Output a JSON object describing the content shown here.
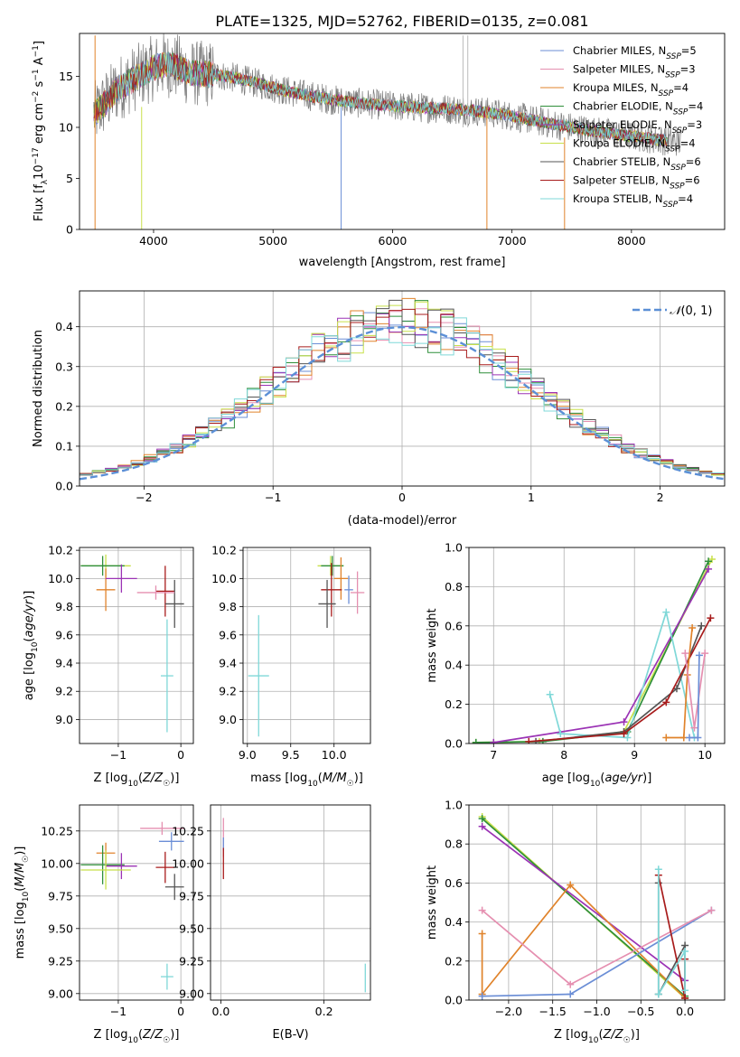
{
  "figure": {
    "suptitle": "PLATE=1325, MJD=52762, FIBERID=0135, z=0.081"
  },
  "colors": {
    "Chabrier MILES": "#6b8ed6",
    "Salpeter MILES": "#e58fb0",
    "Kroupa MILES": "#e0832b",
    "Chabrier ELODIE": "#2f8f3a",
    "Salpeter ELODIE": "#9b33b5",
    "Kroupa ELODIE": "#c8e04a",
    "Chabrier STELIB": "#555555",
    "Salpeter STELIB": "#a81c1c",
    "Kroupa STELIB": "#7fd8d8",
    "data": "#7a7a7a",
    "normal": "#5b8fd6"
  },
  "chart_data": [
    {
      "id": "spectrum",
      "type": "line",
      "title": "",
      "xlabel": "wavelength [Angstrom, rest frame]",
      "ylabel": "Flux [f_λ10^-17 erg cm^-2 s^-1 A^-1]",
      "xlim": [
        3380,
        8780
      ],
      "ylim": [
        0,
        19.2
      ],
      "xticks": [
        4000,
        5000,
        6000,
        7000,
        8000
      ],
      "yticks": [
        0,
        5,
        10,
        15
      ],
      "grid": false,
      "legend_position": "top-right",
      "legend": [
        {
          "label": "Chabrier MILES, N_SSP=5",
          "nssp": "5"
        },
        {
          "label": "Salpeter MILES, N_SSP=3",
          "nssp": "3"
        },
        {
          "label": "Kroupa MILES, N_SSP=4",
          "nssp": "4"
        },
        {
          "label": "Chabrier ELODIE, N_SSP=4",
          "nssp": "4"
        },
        {
          "label": "Salpeter ELODIE, N_SSP=3",
          "nssp": "3"
        },
        {
          "label": "Kroupa ELODIE, N_SSP=4",
          "nssp": "4"
        },
        {
          "label": "Chabrier STELIB, N_SSP=6",
          "nssp": "6"
        },
        {
          "label": "Salpeter STELIB, N_SSP=6",
          "nssp": "6"
        },
        {
          "label": "Kroupa STELIB, N_SSP=4",
          "nssp": "4"
        }
      ],
      "continuum": {
        "x": [
          3500,
          3600,
          3700,
          3800,
          3900,
          4000,
          4100,
          4200,
          4300,
          4500,
          4700,
          4900,
          5100,
          5300,
          5500,
          5700,
          5900,
          6100,
          6300,
          6500,
          6700,
          6900,
          7100,
          7300,
          7500,
          7700,
          7900,
          8100,
          8300,
          8400
        ],
        "y": [
          11.2,
          12.5,
          13.8,
          14.5,
          15.2,
          15.8,
          16.2,
          15.9,
          15.3,
          15.2,
          14.8,
          14.2,
          13.6,
          13.1,
          12.7,
          12.4,
          12.2,
          12.0,
          11.9,
          11.8,
          11.6,
          11.3,
          10.9,
          10.4,
          10.0,
          9.6,
          9.3,
          9.0,
          8.7,
          8.6
        ]
      }
    },
    {
      "id": "residuals",
      "type": "line",
      "xlabel": "(data-model)/error",
      "ylabel": "Normed distribution",
      "xlim": [
        -2.5,
        2.5
      ],
      "ylim": [
        0,
        0.49
      ],
      "xticks": [
        -2,
        -1,
        0,
        1,
        2
      ],
      "yticks": [
        0.0,
        0.1,
        0.2,
        0.3,
        0.4
      ],
      "grid": true,
      "legend_position": "top-right",
      "legend": [
        {
          "label": "N(0,1)"
        }
      ],
      "gaussian": {
        "mu": 0,
        "sigma": 1
      }
    },
    {
      "id": "age_vs_Z",
      "type": "scatter",
      "xlabel": "Z [log10(Z/Z☉)]",
      "ylabel": "age  [log10(age/yr)]",
      "xlim": [
        -1.62,
        0.2
      ],
      "ylim": [
        8.83,
        10.22
      ],
      "xticks": [
        -1,
        0
      ],
      "yticks": [
        9.0,
        9.2,
        9.4,
        9.6,
        9.8,
        10.0,
        10.2
      ],
      "grid": true,
      "points": [
        {
          "model": "Kroupa ELODIE",
          "x": -1.2,
          "y": 10.09,
          "xerr": 0.4,
          "yerr": 0.08
        },
        {
          "model": "Chabrier ELODIE",
          "x": -1.25,
          "y": 10.09,
          "xerr": 0.35,
          "yerr": 0.07
        },
        {
          "model": "Kroupa MILES",
          "x": -1.2,
          "y": 9.92,
          "xerr": 0.15,
          "yerr": 0.15
        },
        {
          "model": "Salpeter ELODIE",
          "x": -0.95,
          "y": 10.0,
          "xerr": 0.25,
          "yerr": 0.1
        },
        {
          "model": "Salpeter STELIB",
          "x": -0.25,
          "y": 9.91,
          "xerr": 0.15,
          "yerr": 0.18
        },
        {
          "model": "Chabrier STELIB",
          "x": -0.1,
          "y": 9.82,
          "xerr": 0.15,
          "yerr": 0.17
        },
        {
          "model": "Salpeter MILES",
          "x": -0.4,
          "y": 9.9,
          "xerr": 0.3,
          "yerr": 0.05
        },
        {
          "model": "Kroupa STELIB",
          "x": -0.22,
          "y": 9.31,
          "xerr": 0.1,
          "yerr": 0.4
        }
      ]
    },
    {
      "id": "age_vs_mass",
      "type": "scatter",
      "xlabel": "mass [log10(M/M☉)]",
      "ylabel": "",
      "xlim": [
        8.95,
        10.42
      ],
      "ylim": [
        8.83,
        10.22
      ],
      "xticks": [
        9.0,
        9.5,
        10.0
      ],
      "yticks": [
        9.0,
        9.2,
        9.4,
        9.6,
        9.8,
        10.0,
        10.2
      ],
      "grid": true,
      "points": [
        {
          "model": "Kroupa ELODIE",
          "x": 9.96,
          "y": 10.09,
          "xerr": 0.15,
          "yerr": 0.07
        },
        {
          "model": "Chabrier ELODIE",
          "x": 9.98,
          "y": 10.09,
          "xerr": 0.13,
          "yerr": 0.07
        },
        {
          "model": "Kroupa MILES",
          "x": 10.08,
          "y": 10.0,
          "xerr": 0.08,
          "yerr": 0.15
        },
        {
          "model": "Salpeter STELIB",
          "x": 9.97,
          "y": 9.92,
          "xerr": 0.12,
          "yerr": 0.19
        },
        {
          "model": "Chabrier STELIB",
          "x": 9.92,
          "y": 9.82,
          "xerr": 0.1,
          "yerr": 0.17
        },
        {
          "model": "Salpeter MILES",
          "x": 10.27,
          "y": 9.9,
          "xerr": 0.08,
          "yerr": 0.15
        },
        {
          "model": "Chabrier MILES",
          "x": 10.17,
          "y": 9.92,
          "xerr": 0.05,
          "yerr": 0.1
        },
        {
          "model": "Kroupa STELIB",
          "x": 9.13,
          "y": 9.31,
          "xerr": 0.12,
          "yerr": 0.43
        }
      ]
    },
    {
      "id": "weight_vs_age",
      "type": "line",
      "xlabel": "age  [log10(age/yr)]",
      "ylabel": "mass weight",
      "xlim": [
        6.65,
        10.28
      ],
      "ylim": [
        0,
        1.0
      ],
      "xticks": [
        7,
        8,
        9,
        10
      ],
      "yticks": [
        0.0,
        0.2,
        0.4,
        0.6,
        0.8,
        1.0
      ],
      "grid": true,
      "series": [
        {
          "model": "Kroupa ELODIE",
          "x": [
            6.75,
            7.65,
            8.85,
            10.1
          ],
          "y": [
            0.005,
            0.01,
            0.06,
            0.94
          ]
        },
        {
          "model": "Chabrier ELODIE",
          "x": [
            6.75,
            7.7,
            8.9,
            10.05
          ],
          "y": [
            0.005,
            0.01,
            0.06,
            0.93
          ]
        },
        {
          "model": "Salpeter ELODIE",
          "x": [
            7.0,
            8.85,
            10.05
          ],
          "y": [
            0.005,
            0.11,
            0.89
          ]
        },
        {
          "model": "Kroupa STELIB",
          "x": [
            7.8,
            7.95,
            8.9,
            9.45,
            9.85
          ],
          "y": [
            0.25,
            0.05,
            0.03,
            0.67,
            0.03
          ]
        },
        {
          "model": "Chabrier STELIB",
          "x": [
            7.6,
            8.85,
            9.6,
            9.95
          ],
          "y": [
            0.01,
            0.06,
            0.28,
            0.6
          ]
        },
        {
          "model": "Salpeter STELIB",
          "x": [
            7.5,
            8.85,
            9.45,
            10.08
          ],
          "y": [
            0.01,
            0.05,
            0.21,
            0.64
          ]
        },
        {
          "model": "Kroupa MILES",
          "x": [
            9.45,
            9.7,
            9.75,
            9.82
          ],
          "y": [
            0.03,
            0.03,
            0.35,
            0.59
          ]
        },
        {
          "model": "Salpeter MILES",
          "x": [
            9.72,
            9.85,
            10.0
          ],
          "y": [
            0.46,
            0.08,
            0.46
          ]
        },
        {
          "model": "Chabrier MILES",
          "x": [
            9.78,
            9.9,
            9.92
          ],
          "y": [
            0.03,
            0.03,
            0.45
          ]
        }
      ]
    },
    {
      "id": "mass_vs_Z",
      "type": "scatter",
      "xlabel": "Z [log10(Z/Z☉)]",
      "ylabel": "mass [log10(M/M☉)]",
      "xlim": [
        -1.62,
        0.2
      ],
      "ylim": [
        8.95,
        10.45
      ],
      "xticks": [
        -1,
        0
      ],
      "yticks": [
        9.0,
        9.25,
        9.5,
        9.75,
        10.0,
        10.25
      ],
      "grid": true,
      "points": [
        {
          "model": "Salpeter MILES",
          "x": -0.3,
          "y": 10.27,
          "xerr": 0.35,
          "yerr": 0.05
        },
        {
          "model": "Chabrier MILES",
          "x": -0.15,
          "y": 10.17,
          "xerr": 0.2,
          "yerr": 0.07
        },
        {
          "model": "Kroupa MILES",
          "x": -1.2,
          "y": 10.08,
          "xerr": 0.15,
          "yerr": 0.08
        },
        {
          "model": "Chabrier ELODIE",
          "x": -1.25,
          "y": 9.99,
          "xerr": 0.35,
          "yerr": 0.15
        },
        {
          "model": "Salpeter ELODIE",
          "x": -0.95,
          "y": 9.98,
          "xerr": 0.25,
          "yerr": 0.1
        },
        {
          "model": "Kroupa ELODIE",
          "x": -1.2,
          "y": 9.95,
          "xerr": 0.4,
          "yerr": 0.15
        },
        {
          "model": "Salpeter STELIB",
          "x": -0.25,
          "y": 9.97,
          "xerr": 0.15,
          "yerr": 0.12
        },
        {
          "model": "Chabrier STELIB",
          "x": -0.1,
          "y": 9.82,
          "xerr": 0.15,
          "yerr": 0.1
        },
        {
          "model": "Kroupa STELIB",
          "x": -0.22,
          "y": 9.13,
          "xerr": 0.1,
          "yerr": 0.1
        }
      ]
    },
    {
      "id": "mass_vs_EBV",
      "type": "scatter",
      "xlabel": "E(B-V)",
      "ylabel": "",
      "xlim": [
        -0.02,
        0.29
      ],
      "ylim": [
        8.95,
        10.45
      ],
      "xticks": [
        0.0,
        0.2
      ],
      "yticks": [
        9.0,
        9.25,
        9.5,
        9.75,
        10.0,
        10.25
      ],
      "grid": true,
      "points": [
        {
          "model": "Salpeter MILES",
          "x": 0.005,
          "y": 10.2,
          "xerr": 0,
          "yerr": 0.15
        },
        {
          "model": "Chabrier MILES",
          "x": 0.005,
          "y": 10.15,
          "xerr": 0,
          "yerr": 0.05
        },
        {
          "model": "Salpeter STELIB",
          "x": 0.005,
          "y": 10.0,
          "xerr": 0,
          "yerr": 0.12
        },
        {
          "model": "Kroupa STELIB",
          "x": 0.28,
          "y": 9.12,
          "xerr": 0,
          "yerr": 0.11
        }
      ]
    },
    {
      "id": "weight_vs_Z",
      "type": "line",
      "xlabel": "Z [log10(Z/Z☉)]",
      "ylabel": "mass weight",
      "xlim": [
        -2.45,
        0.45
      ],
      "ylim": [
        0,
        1.0
      ],
      "xticks": [
        -2.0,
        -1.5,
        -1.0,
        -0.5,
        0.0
      ],
      "yticks": [
        0.0,
        0.2,
        0.4,
        0.6,
        0.8,
        1.0
      ],
      "grid": true,
      "series": [
        {
          "model": "Kroupa ELODIE",
          "x": [
            -2.3,
            0.0
          ],
          "y": [
            0.94,
            0.01
          ]
        },
        {
          "model": "Chabrier ELODIE",
          "x": [
            -2.3,
            0.0
          ],
          "y": [
            0.93,
            0.02
          ]
        },
        {
          "model": "Salpeter ELODIE",
          "x": [
            -2.3,
            0.0
          ],
          "y": [
            0.89,
            0.1
          ]
        },
        {
          "model": "Kroupa MILES",
          "x": [
            -2.3,
            -2.3,
            -1.3,
            0.0
          ],
          "y": [
            0.34,
            0.03,
            0.59,
            0.01
          ]
        },
        {
          "model": "Chabrier MILES",
          "x": [
            -2.3,
            -1.3,
            0.3
          ],
          "y": [
            0.02,
            0.03,
            0.46
          ]
        },
        {
          "model": "Salpeter MILES",
          "x": [
            -2.3,
            -1.3,
            0.3
          ],
          "y": [
            0.46,
            0.08,
            0.46
          ]
        },
        {
          "model": "Chabrier STELIB",
          "x": [
            -0.3,
            -0.3,
            0.0,
            0.0
          ],
          "y": [
            0.6,
            0.03,
            0.28,
            0.01
          ]
        },
        {
          "model": "Salpeter STELIB",
          "x": [
            -0.3,
            0.0,
            0.0
          ],
          "y": [
            0.64,
            0.01,
            0.21
          ]
        },
        {
          "model": "Kroupa STELIB",
          "x": [
            -0.3,
            -0.3,
            0.0,
            0.0
          ],
          "y": [
            0.67,
            0.03,
            0.25,
            0.05
          ]
        }
      ]
    }
  ]
}
